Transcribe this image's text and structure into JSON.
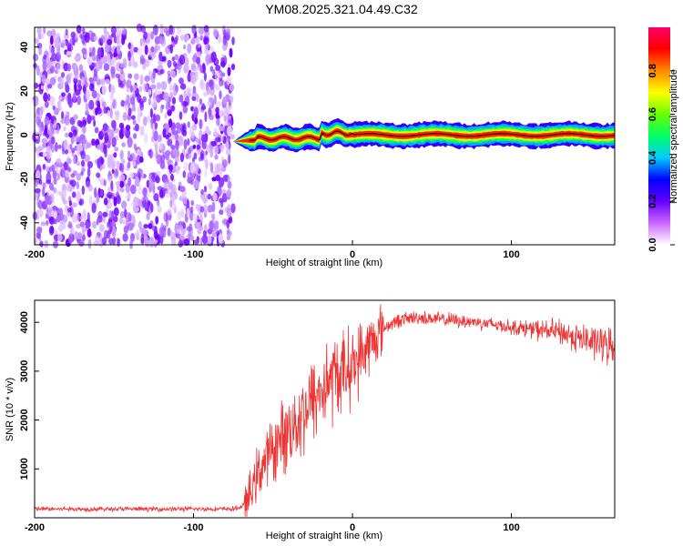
{
  "title": "YM08.2025.321.04.49.C32",
  "chart_data": [
    {
      "type": "heatmap",
      "xlabel": "Height of straight line (km)",
      "ylabel": "Frequency (Hz)",
      "xlim": [
        -200,
        165
      ],
      "ylim": [
        -50,
        49
      ],
      "xticks": [
        -200,
        -100,
        0,
        100
      ],
      "yticks": [
        -40,
        -20,
        0,
        20,
        40
      ],
      "colorbar": {
        "label": "Normalized spectral amplitude",
        "range": [
          0.0,
          1.0
        ],
        "ticks": [
          "0.0",
          "0.2",
          "0.4",
          "0.6",
          "0.8"
        ],
        "colors": [
          "#ffffff",
          "#cc66ff",
          "#6600ff",
          "#0000ff",
          "#00ccff",
          "#00ff66",
          "#66ff00",
          "#ffff00",
          "#ff8800",
          "#ff0000",
          "#ff0066"
        ]
      },
      "noise_region_x": [
        -200,
        -75
      ],
      "signal_region_x": [
        -75,
        165
      ],
      "signal_frequency_hz": 0
    },
    {
      "type": "line",
      "xlabel": "Height of straight line (km)",
      "ylabel": "SNR (10 * v/v)",
      "xlim": [
        -200,
        165
      ],
      "ylim": [
        0,
        4450
      ],
      "xticks": [
        -200,
        -100,
        0,
        100
      ],
      "yticks": [
        1000,
        2000,
        3000,
        4000
      ],
      "line_color": "#ee3333",
      "envelope": {
        "x": [
          -200,
          -75,
          -70,
          -65,
          -60,
          -50,
          -40,
          -30,
          -20,
          -15,
          -10,
          0,
          10,
          20,
          30,
          40,
          60,
          80,
          100,
          130,
          150,
          165
        ],
        "y": [
          180,
          180,
          220,
          400,
          900,
          1400,
          1800,
          2200,
          2600,
          2800,
          2900,
          3100,
          3500,
          3900,
          4050,
          4100,
          4050,
          4000,
          3900,
          3800,
          3600,
          3500
        ]
      }
    }
  ]
}
